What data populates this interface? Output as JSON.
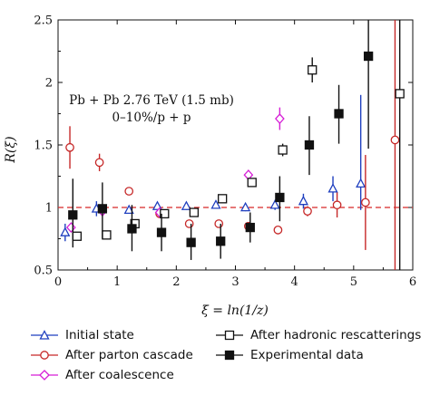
{
  "chart_data": {
    "type": "scatter",
    "ylabel": "R(ξ)",
    "xlabel": "ξ = ln(1/z)",
    "xlim": [
      0,
      6
    ],
    "ylim": [
      0.5,
      2.5
    ],
    "xticks": [
      "0",
      "1",
      "2",
      "3",
      "4",
      "5",
      "6"
    ],
    "yticks": [
      "0.5",
      "1",
      "1.5",
      "2",
      "2.5"
    ],
    "annotation": [
      "Pb + Pb 2.76 TeV (1.5 mb)",
      "0–10%/p + p"
    ],
    "reference_line": {
      "y": 1,
      "style": "dashed",
      "color": "#d62728"
    },
    "legend_position": "below",
    "series": [
      {
        "name": "Initial state",
        "marker": "triangle-open",
        "color": "#1f3fbf",
        "points": [
          {
            "x": 0.12,
            "y": 0.8,
            "lo": 0.73,
            "hi": 0.87
          },
          {
            "x": 0.65,
            "y": 0.99,
            "lo": 0.93,
            "hi": 1.05
          },
          {
            "x": 1.2,
            "y": 0.98,
            "lo": 0.95,
            "hi": 1.01
          },
          {
            "x": 1.68,
            "y": 1.01,
            "lo": 0.98,
            "hi": 1.04
          },
          {
            "x": 2.17,
            "y": 1.01,
            "lo": 0.98,
            "hi": 1.04
          },
          {
            "x": 2.67,
            "y": 1.02,
            "lo": 0.99,
            "hi": 1.05
          },
          {
            "x": 3.17,
            "y": 1.0,
            "lo": 0.97,
            "hi": 1.03
          },
          {
            "x": 3.67,
            "y": 1.02,
            "lo": 0.98,
            "hi": 1.06
          },
          {
            "x": 4.15,
            "y": 1.05,
            "lo": 0.99,
            "hi": 1.11
          },
          {
            "x": 4.65,
            "y": 1.15,
            "lo": 1.05,
            "hi": 1.25
          },
          {
            "x": 5.12,
            "y": 1.19,
            "lo": 0.98,
            "hi": 1.9
          }
        ]
      },
      {
        "name": "After parton cascade",
        "marker": "circle-open",
        "color": "#c62828",
        "points": [
          {
            "x": 0.2,
            "y": 1.48,
            "lo": 1.31,
            "hi": 1.65
          },
          {
            "x": 0.7,
            "y": 1.36,
            "lo": 1.29,
            "hi": 1.43
          },
          {
            "x": 1.2,
            "y": 1.13,
            "lo": 1.1,
            "hi": 1.16
          },
          {
            "x": 1.72,
            "y": 0.95,
            "lo": 0.93,
            "hi": 0.97
          },
          {
            "x": 2.22,
            "y": 0.87,
            "lo": 0.85,
            "hi": 0.89
          },
          {
            "x": 2.72,
            "y": 0.87,
            "lo": 0.85,
            "hi": 0.89
          },
          {
            "x": 3.22,
            "y": 0.85,
            "lo": 0.83,
            "hi": 0.87
          },
          {
            "x": 3.72,
            "y": 0.82,
            "lo": 0.8,
            "hi": 0.84
          },
          {
            "x": 4.22,
            "y": 0.97,
            "lo": 0.93,
            "hi": 1.01
          },
          {
            "x": 4.72,
            "y": 1.02,
            "lo": 0.92,
            "hi": 1.12
          },
          {
            "x": 5.2,
            "y": 1.04,
            "lo": 0.66,
            "hi": 1.42
          },
          {
            "x": 5.7,
            "y": 1.54,
            "lo": 0.5,
            "hi": 2.5
          }
        ]
      },
      {
        "name": "After coalescence",
        "marker": "diamond-open",
        "color": "#d61ed6",
        "points": [
          {
            "x": 0.22,
            "y": 0.84,
            "lo": 0.82,
            "hi": 0.86
          },
          {
            "x": 0.75,
            "y": 0.97,
            "lo": 0.95,
            "hi": 0.99
          },
          {
            "x": 1.72,
            "y": 0.96,
            "lo": 0.94,
            "hi": 0.98
          },
          {
            "x": 3.22,
            "y": 1.26,
            "lo": 1.22,
            "hi": 1.3
          },
          {
            "x": 3.75,
            "y": 1.71,
            "lo": 1.62,
            "hi": 1.8
          }
        ]
      },
      {
        "name": "After hadronic rescatterings",
        "marker": "square-open",
        "color": "#111111",
        "points": [
          {
            "x": 0.32,
            "y": 0.77,
            "lo": 0.75,
            "hi": 0.79
          },
          {
            "x": 0.82,
            "y": 0.78,
            "lo": 0.76,
            "hi": 0.8
          },
          {
            "x": 1.3,
            "y": 0.87,
            "lo": 0.85,
            "hi": 0.89
          },
          {
            "x": 1.8,
            "y": 0.95,
            "lo": 0.93,
            "hi": 0.97
          },
          {
            "x": 2.3,
            "y": 0.96,
            "lo": 0.94,
            "hi": 0.98
          },
          {
            "x": 2.78,
            "y": 1.07,
            "lo": 1.05,
            "hi": 1.09
          },
          {
            "x": 3.28,
            "y": 1.2,
            "lo": 1.18,
            "hi": 1.22
          },
          {
            "x": 3.8,
            "y": 1.46,
            "lo": 1.41,
            "hi": 1.51
          },
          {
            "x": 4.3,
            "y": 2.1,
            "lo": 2.0,
            "hi": 2.2
          },
          {
            "x": 5.78,
            "y": 1.91,
            "lo": 0.5,
            "hi": 2.5
          }
        ]
      },
      {
        "name": "Experimental data",
        "marker": "square-filled",
        "color": "#111111",
        "points": [
          {
            "x": 0.25,
            "y": 0.94,
            "lo": 0.68,
            "hi": 1.23
          },
          {
            "x": 0.75,
            "y": 0.99,
            "lo": 0.75,
            "hi": 1.2
          },
          {
            "x": 1.25,
            "y": 0.83,
            "lo": 0.65,
            "hi": 1.02
          },
          {
            "x": 1.75,
            "y": 0.8,
            "lo": 0.65,
            "hi": 0.95
          },
          {
            "x": 2.25,
            "y": 0.72,
            "lo": 0.58,
            "hi": 0.87
          },
          {
            "x": 2.75,
            "y": 0.73,
            "lo": 0.59,
            "hi": 0.87
          },
          {
            "x": 3.25,
            "y": 0.84,
            "lo": 0.72,
            "hi": 0.96
          },
          {
            "x": 3.75,
            "y": 1.08,
            "lo": 0.89,
            "hi": 1.25
          },
          {
            "x": 4.25,
            "y": 1.5,
            "lo": 1.26,
            "hi": 1.73
          },
          {
            "x": 4.75,
            "y": 1.75,
            "lo": 1.51,
            "hi": 1.98
          },
          {
            "x": 5.25,
            "y": 2.21,
            "lo": 1.47,
            "hi": 2.5
          }
        ]
      }
    ]
  }
}
